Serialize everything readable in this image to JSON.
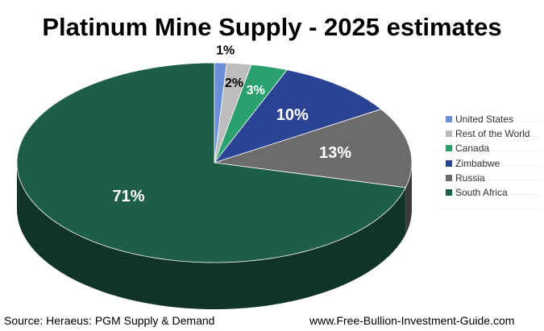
{
  "chart_data": {
    "type": "pie",
    "title": "Platinum Mine Supply - 2025 estimates",
    "legend_position": "right",
    "slices": [
      {
        "name": "United States",
        "value": 1,
        "label": "1%",
        "color": "#6a8fd8"
      },
      {
        "name": "Rest of the World",
        "value": 2,
        "label": "2%",
        "color": "#bdbdbd"
      },
      {
        "name": "Canada",
        "value": 3,
        "label": "3%",
        "color": "#2aa06e"
      },
      {
        "name": "Zimbabwe",
        "value": 10,
        "label": "10%",
        "color": "#2a4392"
      },
      {
        "name": "Russia",
        "value": 13,
        "label": "13%",
        "color": "#6c6c6c"
      },
      {
        "name": "South Africa",
        "value": 71,
        "label": "71%",
        "color": "#1e5e48"
      }
    ]
  },
  "footer": {
    "source": "Source: Heraeus: PGM Supply & Demand",
    "website": "www.Free-Bullion-Investment-Guide.com"
  }
}
